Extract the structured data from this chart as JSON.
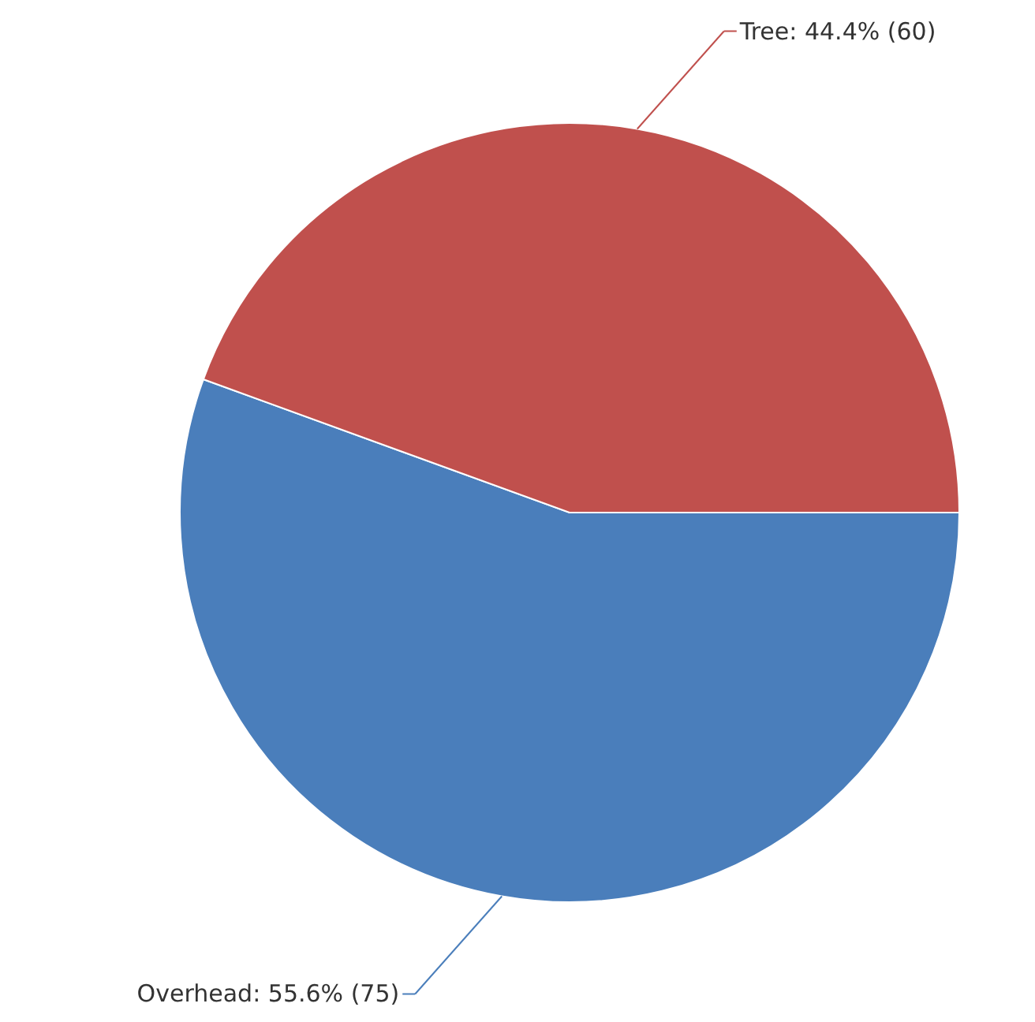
{
  "chart_data": {
    "type": "pie",
    "categories": [
      "Overhead",
      "Tree"
    ],
    "values": [
      75,
      60
    ],
    "colors": [
      "#4a7ebb",
      "#c0504d"
    ],
    "value_labels": [
      "55.6% (75)",
      "44.4% (60)"
    ]
  }
}
